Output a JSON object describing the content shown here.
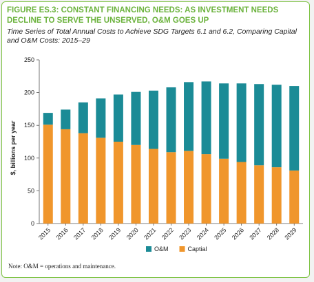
{
  "chart_data": {
    "type": "stacked-bar",
    "figure_label": "FIGURE ES.3:",
    "title": "CONSTANT FINANCING NEEDS: AS INVESTMENT NEEDS DECLINE TO SERVE THE UNSERVED, O&M GOES UP",
    "subtitle": "Time Series of Total Annual Costs to Achieve SDG Targets 6.1 and 6.2, Comparing Capital and O&M Costs: 2015–29",
    "y_label": "$, billions per year",
    "categories": [
      "2015",
      "2016",
      "2017",
      "2018",
      "2019",
      "2020",
      "2021",
      "2022",
      "2023",
      "2024",
      "2025",
      "2026",
      "2027",
      "2028",
      "2029"
    ],
    "series": [
      {
        "name": "O&M",
        "color": "#1b8b96",
        "values": [
          18,
          30,
          47,
          60,
          72,
          81,
          89,
          99,
          105,
          111,
          115,
          120,
          124,
          126,
          129
        ]
      },
      {
        "name": "Captial",
        "color": "#f0962c",
        "values": [
          151,
          144,
          138,
          131,
          125,
          120,
          114,
          109,
          111,
          106,
          99,
          94,
          89,
          86,
          81
        ]
      }
    ],
    "ylim": [
      0,
      250
    ],
    "yticks": [
      0,
      50,
      100,
      150,
      200,
      250
    ],
    "note": "Note: O&M = operations and maintenance."
  }
}
